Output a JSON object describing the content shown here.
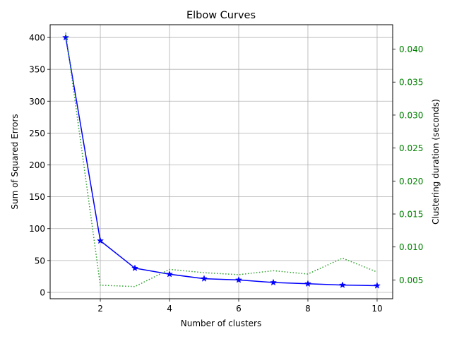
{
  "chart_data": {
    "type": "line",
    "title": "Elbow Curves",
    "xlabel": "Number of clusters",
    "ylabel": "Sum of Squared Errors",
    "y2label": "Clustering duration (seconds)",
    "x": [
      1,
      2,
      3,
      4,
      5,
      6,
      7,
      8,
      9,
      10
    ],
    "xlim": [
      0.55,
      10.45
    ],
    "ylim": [
      -10,
      420
    ],
    "y2lim": [
      0.00215,
      0.0437
    ],
    "xticks": [
      "2",
      "4",
      "6",
      "8",
      "10"
    ],
    "yticks": [
      "0",
      "50",
      "100",
      "150",
      "200",
      "250",
      "300",
      "350",
      "400"
    ],
    "y2ticks": [
      "0.005",
      "0.010",
      "0.015",
      "0.020",
      "0.025",
      "0.030",
      "0.035",
      "0.040"
    ],
    "grid": true,
    "series": [
      {
        "axis": "left",
        "color": "#0000ff",
        "style": "solid",
        "marker": "star",
        "values": [
          400,
          81,
          38,
          28.5,
          21.5,
          19.5,
          15.5,
          13.5,
          11.5,
          10.5
        ]
      },
      {
        "axis": "right",
        "color": "#2ca02c",
        "style": "dotted",
        "marker": "none",
        "values": [
          0.0425,
          0.0042,
          0.004,
          0.0066,
          0.0061,
          0.0058,
          0.0064,
          0.0059,
          0.0083,
          0.0062
        ]
      }
    ],
    "right_axis_color": "#008000",
    "right_label_color": "#2ca02c"
  }
}
